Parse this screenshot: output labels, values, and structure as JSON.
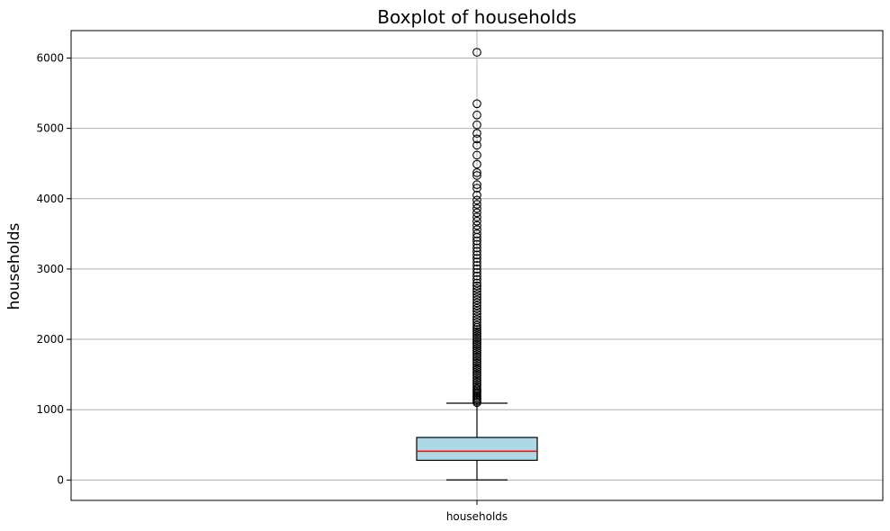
{
  "chart_data": {
    "type": "boxplot",
    "title": "Boxplot of households",
    "xlabel": "",
    "ylabel": "households",
    "categories": [
      "households"
    ],
    "y_ticks": [
      0,
      1000,
      2000,
      3000,
      4000,
      5000,
      6000
    ],
    "ylim": [
      -290,
      6390
    ],
    "grid": true,
    "colors": {
      "box_fill": "#add8e6",
      "box_edge": "#000000",
      "median": "#ff0000",
      "grid": "#b0b0b0"
    },
    "box": {
      "whisker_low": 1,
      "q1": 280,
      "median": 409,
      "q3": 605,
      "whisker_high": 1092
    },
    "outliers": [
      1100,
      1120,
      1140,
      1160,
      1180,
      1200,
      1220,
      1240,
      1260,
      1280,
      1300,
      1330,
      1360,
      1390,
      1420,
      1450,
      1480,
      1510,
      1540,
      1570,
      1600,
      1630,
      1660,
      1690,
      1720,
      1750,
      1780,
      1810,
      1840,
      1870,
      1900,
      1930,
      1960,
      1990,
      2020,
      2050,
      2080,
      2110,
      2140,
      2170,
      2200,
      2240,
      2280,
      2320,
      2360,
      2400,
      2440,
      2480,
      2520,
      2560,
      2600,
      2640,
      2680,
      2720,
      2760,
      2800,
      2850,
      2900,
      2950,
      3000,
      3050,
      3100,
      3150,
      3200,
      3250,
      3300,
      3350,
      3400,
      3450,
      3500,
      3560,
      3620,
      3680,
      3740,
      3800,
      3860,
      3920,
      3980,
      4050,
      4150,
      4200,
      4330,
      4370,
      4490,
      4620,
      4760,
      4850,
      4930,
      5050,
      5190,
      5350,
      6082
    ]
  }
}
